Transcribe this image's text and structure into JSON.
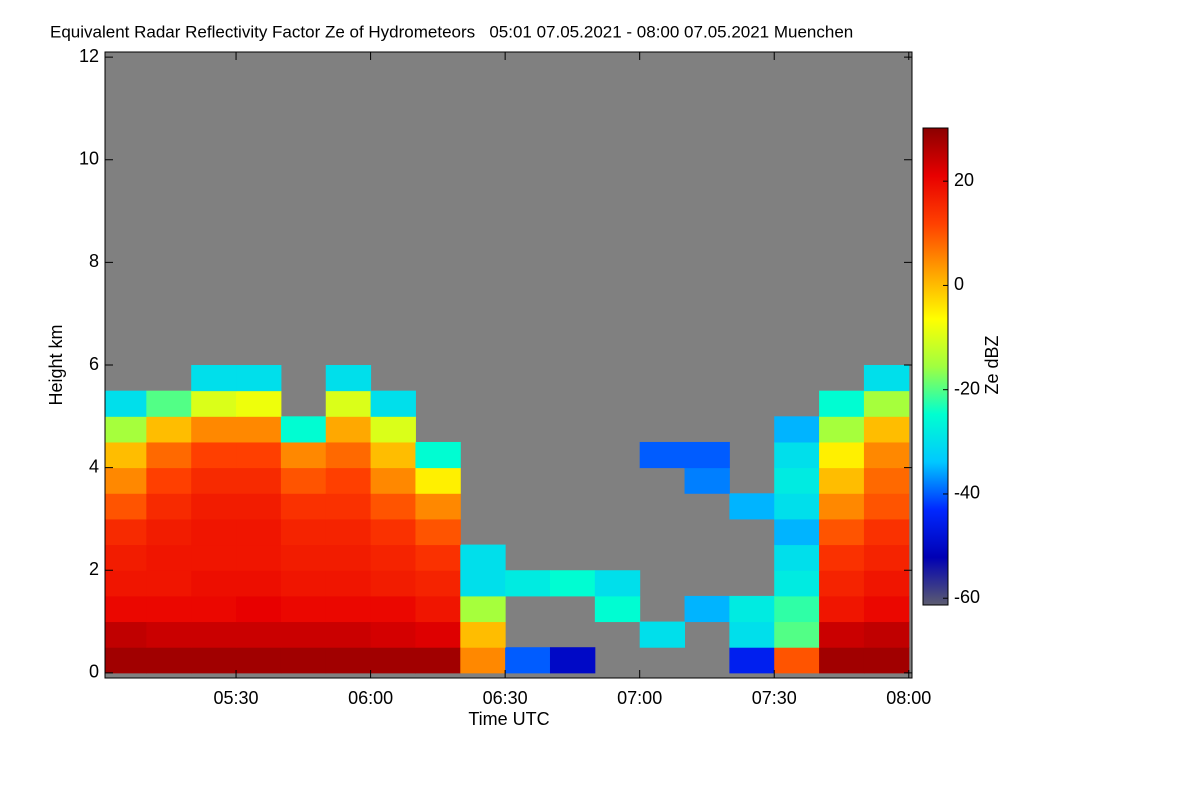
{
  "chart_data": {
    "type": "heatmap",
    "title": "Equivalent Radar Reflectivity Factor Ze of Hydrometeors   05:01 07.05.2021 - 08:00 07.05.2021 Muenchen",
    "x_label": "Time UTC",
    "y_label": "Height km",
    "colorbar_label": "Ze dBZ",
    "x": [
      5.0833,
      5.25,
      5.4167,
      5.5833,
      5.75,
      5.9167,
      6.0833,
      6.25,
      6.4167,
      6.5833,
      6.75,
      6.9167,
      7.0833,
      7.25,
      7.4167,
      7.5833,
      7.75,
      7.9167
    ],
    "y": [
      0.25,
      0.75,
      1.25,
      1.75,
      2.25,
      2.75,
      3.25,
      3.75,
      4.25,
      4.75,
      5.25,
      5.75
    ],
    "z": [
      [
        28,
        28,
        28,
        28,
        28,
        28,
        28,
        28,
        5,
        -40,
        -50,
        null,
        null,
        null,
        -45,
        10,
        28,
        28
      ],
      [
        25,
        24,
        24,
        24,
        24,
        24,
        23,
        22,
        0,
        null,
        null,
        null,
        -30,
        null,
        -30,
        -20,
        24,
        25
      ],
      [
        20,
        20,
        20,
        21,
        20,
        20,
        20,
        18,
        -15,
        null,
        null,
        -25,
        null,
        -35,
        -28,
        -22,
        18,
        20
      ],
      [
        18,
        18,
        19,
        19,
        18,
        18,
        17,
        16,
        -30,
        -28,
        -25,
        -30,
        null,
        null,
        null,
        -28,
        16,
        18
      ],
      [
        17,
        18,
        18,
        18,
        17,
        17,
        16,
        14,
        -30,
        null,
        null,
        null,
        null,
        null,
        null,
        -30,
        14,
        16
      ],
      [
        15,
        17,
        18,
        18,
        16,
        16,
        14,
        10,
        null,
        null,
        null,
        null,
        null,
        null,
        null,
        -35,
        10,
        14
      ],
      [
        10,
        15,
        17,
        17,
        14,
        14,
        10,
        5,
        null,
        null,
        null,
        null,
        null,
        null,
        -35,
        -30,
        5,
        10
      ],
      [
        5,
        12,
        15,
        15,
        10,
        12,
        5,
        -5,
        null,
        null,
        null,
        null,
        null,
        -38,
        null,
        -28,
        0,
        8
      ],
      [
        0,
        8,
        12,
        12,
        5,
        8,
        0,
        -25,
        null,
        null,
        null,
        null,
        -40,
        -40,
        null,
        -30,
        -5,
        5
      ],
      [
        -15,
        0,
        5,
        5,
        -25,
        2,
        -10,
        null,
        null,
        null,
        null,
        null,
        null,
        null,
        null,
        -35,
        -15,
        0
      ],
      [
        -30,
        -20,
        -10,
        -8,
        null,
        -10,
        -30,
        null,
        null,
        null,
        null,
        null,
        null,
        null,
        null,
        null,
        -25,
        -15
      ],
      [
        null,
        null,
        -30,
        -30,
        null,
        -30,
        null,
        null,
        null,
        null,
        null,
        null,
        null,
        null,
        null,
        null,
        null,
        -30
      ]
    ],
    "xlim": [
      5.013,
      8.012
    ],
    "xticks": [
      {
        "value": 5.5,
        "label": "05:30"
      },
      {
        "value": 6.0,
        "label": "06:00"
      },
      {
        "value": 6.5,
        "label": "06:30"
      },
      {
        "value": 7.0,
        "label": "07:00"
      },
      {
        "value": 7.5,
        "label": "07:30"
      },
      {
        "value": 8.0,
        "label": "08:00"
      }
    ],
    "ylim": [
      -0.1,
      12.1
    ],
    "yticks": [
      0,
      2,
      4,
      6,
      8,
      10,
      12
    ],
    "zlim": [
      -61.3,
      30.2
    ],
    "zticks": [
      -60,
      -40,
      -20,
      0,
      20
    ],
    "background_color": "#808080",
    "colormap": [
      "#5c5c70",
      "#0000b4",
      "#0028ff",
      "#00c8ff",
      "#00ffd0",
      "#a0ff40",
      "#ffff00",
      "#ffa000",
      "#ff4000",
      "#e80000",
      "#8b0000"
    ]
  }
}
